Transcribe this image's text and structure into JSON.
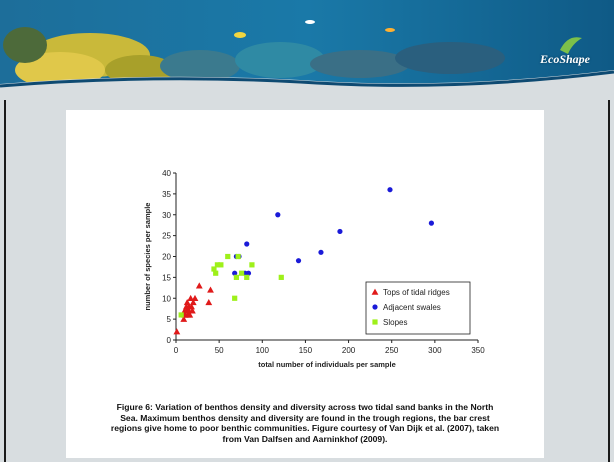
{
  "brand": {
    "name": "EcoShape"
  },
  "colors": {
    "tops": "#e01a1a",
    "swales": "#1a1ad8",
    "slopes": "#9ef01a",
    "axis": "#222222"
  },
  "chart_data": {
    "type": "scatter",
    "xlabel": "total number of individuals per sample",
    "ylabel": "number of species per sample",
    "xlim": [
      0,
      350
    ],
    "ylim": [
      0,
      40
    ],
    "xticks": [
      "0",
      "50",
      "100",
      "150",
      "200",
      "250",
      "300",
      "350"
    ],
    "yticks": [
      "0",
      "5",
      "10",
      "15",
      "20",
      "25",
      "30",
      "35",
      "40"
    ],
    "grid": false,
    "legend_position": "bottom-right",
    "series": [
      {
        "name": "Tops of tidal ridges",
        "marker": "triangle",
        "color": "#e01a1a",
        "points": [
          [
            1,
            2
          ],
          [
            9,
            5
          ],
          [
            10,
            6
          ],
          [
            10,
            7
          ],
          [
            11,
            6
          ],
          [
            12,
            8
          ],
          [
            13,
            7
          ],
          [
            13,
            9
          ],
          [
            14,
            6
          ],
          [
            15,
            7
          ],
          [
            15,
            8
          ],
          [
            16,
            6
          ],
          [
            17,
            10
          ],
          [
            18,
            8
          ],
          [
            19,
            7
          ],
          [
            20,
            9
          ],
          [
            22,
            10
          ],
          [
            27,
            13
          ],
          [
            38,
            9
          ],
          [
            40,
            12
          ]
        ]
      },
      {
        "name": "Adjacent swales",
        "marker": "circle",
        "color": "#1a1ad8",
        "points": [
          [
            68,
            16
          ],
          [
            70,
            20
          ],
          [
            73,
            20
          ],
          [
            80,
            16
          ],
          [
            82,
            23
          ],
          [
            84,
            16
          ],
          [
            118,
            30
          ],
          [
            142,
            19
          ],
          [
            168,
            21
          ],
          [
            190,
            26
          ],
          [
            248,
            36
          ],
          [
            296,
            28
          ]
        ]
      },
      {
        "name": "Slopes",
        "marker": "square",
        "color": "#9ef01a",
        "points": [
          [
            6,
            6
          ],
          [
            44,
            17
          ],
          [
            46,
            16
          ],
          [
            48,
            18
          ],
          [
            52,
            18
          ],
          [
            60,
            20
          ],
          [
            68,
            10
          ],
          [
            70,
            15
          ],
          [
            72,
            20
          ],
          [
            76,
            16
          ],
          [
            82,
            15
          ],
          [
            88,
            18
          ],
          [
            122,
            15
          ]
        ]
      }
    ]
  },
  "caption": {
    "line1": "Figure 6: Variation of benthos density and diversity across two tidal sand banks in the North",
    "line2": "Sea. Maximum benthos density and diversity are found in the trough regions, the bar crest",
    "line3": "regions give home to poor benthic communities. Figure courtesy of Van Dijk et al. (2007), taken",
    "line4": "from Van Dalfsen and Aarninkhof (2009)."
  }
}
